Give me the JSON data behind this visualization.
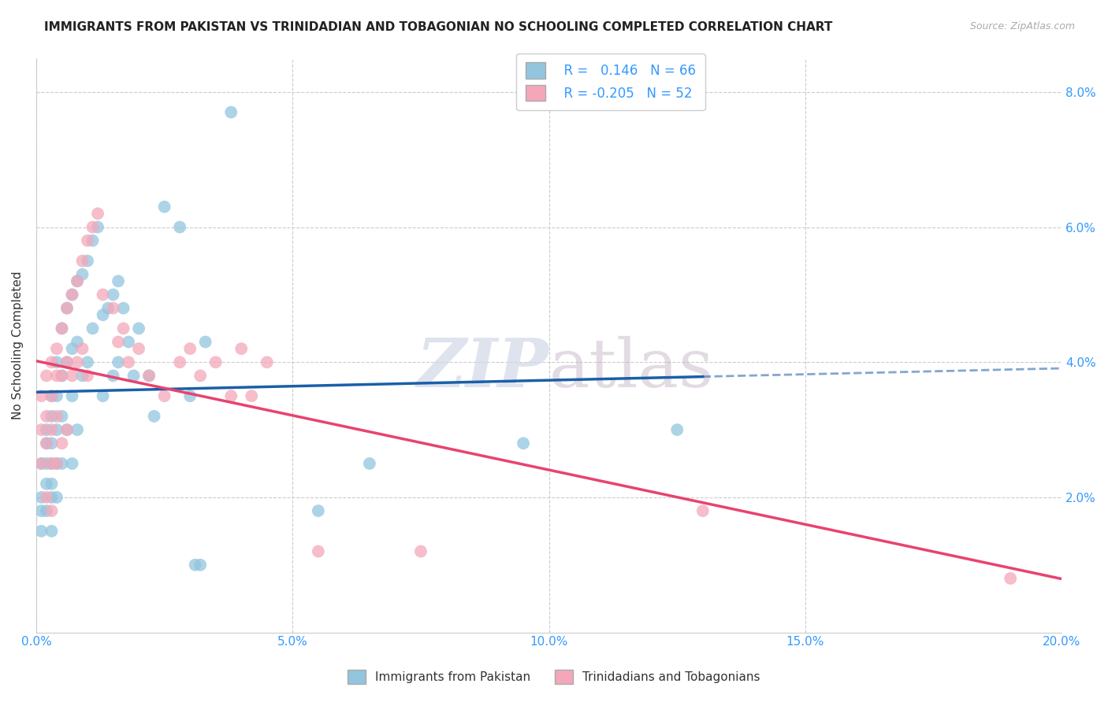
{
  "title": "IMMIGRANTS FROM PAKISTAN VS TRINIDADIAN AND TOBAGONIAN NO SCHOOLING COMPLETED CORRELATION CHART",
  "source": "Source: ZipAtlas.com",
  "ylabel": "No Schooling Completed",
  "xlim": [
    0,
    0.2
  ],
  "ylim": [
    0,
    0.085
  ],
  "xticks": [
    0.0,
    0.05,
    0.1,
    0.15,
    0.2
  ],
  "xticklabels": [
    "0.0%",
    "5.0%",
    "10.0%",
    "15.0%",
    "20.0%"
  ],
  "yticks": [
    0.0,
    0.02,
    0.04,
    0.06,
    0.08
  ],
  "yticklabels": [
    "",
    "2.0%",
    "4.0%",
    "6.0%",
    "8.0%"
  ],
  "watermark_zip": "ZIP",
  "watermark_atlas": "atlas",
  "blue_color": "#92c5de",
  "pink_color": "#f4a7b9",
  "line_blue": "#1a5fa8",
  "line_pink": "#e8436e",
  "pakistan_x": [
    0.001,
    0.001,
    0.001,
    0.001,
    0.002,
    0.002,
    0.002,
    0.002,
    0.002,
    0.003,
    0.003,
    0.003,
    0.003,
    0.003,
    0.003,
    0.003,
    0.004,
    0.004,
    0.004,
    0.004,
    0.004,
    0.005,
    0.005,
    0.005,
    0.005,
    0.006,
    0.006,
    0.006,
    0.007,
    0.007,
    0.007,
    0.007,
    0.008,
    0.008,
    0.008,
    0.009,
    0.009,
    0.01,
    0.01,
    0.011,
    0.011,
    0.012,
    0.013,
    0.013,
    0.014,
    0.015,
    0.015,
    0.016,
    0.016,
    0.017,
    0.018,
    0.019,
    0.02,
    0.022,
    0.023,
    0.025,
    0.028,
    0.03,
    0.031,
    0.032,
    0.033,
    0.038,
    0.055,
    0.065,
    0.095,
    0.125
  ],
  "pakistan_y": [
    0.025,
    0.02,
    0.018,
    0.015,
    0.03,
    0.028,
    0.025,
    0.022,
    0.018,
    0.035,
    0.032,
    0.028,
    0.025,
    0.022,
    0.02,
    0.015,
    0.04,
    0.035,
    0.03,
    0.025,
    0.02,
    0.045,
    0.038,
    0.032,
    0.025,
    0.048,
    0.04,
    0.03,
    0.05,
    0.042,
    0.035,
    0.025,
    0.052,
    0.043,
    0.03,
    0.053,
    0.038,
    0.055,
    0.04,
    0.058,
    0.045,
    0.06,
    0.047,
    0.035,
    0.048,
    0.05,
    0.038,
    0.052,
    0.04,
    0.048,
    0.043,
    0.038,
    0.045,
    0.038,
    0.032,
    0.063,
    0.06,
    0.035,
    0.01,
    0.01,
    0.043,
    0.077,
    0.018,
    0.025,
    0.028,
    0.03
  ],
  "trinidad_x": [
    0.001,
    0.001,
    0.001,
    0.002,
    0.002,
    0.002,
    0.002,
    0.003,
    0.003,
    0.003,
    0.003,
    0.003,
    0.004,
    0.004,
    0.004,
    0.004,
    0.005,
    0.005,
    0.005,
    0.006,
    0.006,
    0.006,
    0.007,
    0.007,
    0.008,
    0.008,
    0.009,
    0.009,
    0.01,
    0.01,
    0.011,
    0.012,
    0.013,
    0.015,
    0.016,
    0.017,
    0.018,
    0.02,
    0.022,
    0.025,
    0.028,
    0.03,
    0.032,
    0.035,
    0.038,
    0.04,
    0.042,
    0.045,
    0.055,
    0.075,
    0.13,
    0.19
  ],
  "trinidad_y": [
    0.035,
    0.03,
    0.025,
    0.038,
    0.032,
    0.028,
    0.02,
    0.04,
    0.035,
    0.03,
    0.025,
    0.018,
    0.042,
    0.038,
    0.032,
    0.025,
    0.045,
    0.038,
    0.028,
    0.048,
    0.04,
    0.03,
    0.05,
    0.038,
    0.052,
    0.04,
    0.055,
    0.042,
    0.058,
    0.038,
    0.06,
    0.062,
    0.05,
    0.048,
    0.043,
    0.045,
    0.04,
    0.042,
    0.038,
    0.035,
    0.04,
    0.042,
    0.038,
    0.04,
    0.035,
    0.042,
    0.035,
    0.04,
    0.012,
    0.012,
    0.018,
    0.008
  ]
}
